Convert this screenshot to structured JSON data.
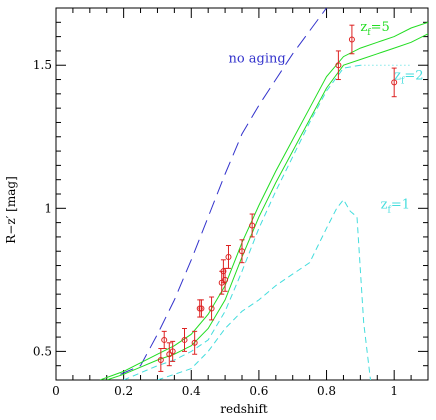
{
  "chart_data": {
    "type": "line",
    "xlabel": "redshift",
    "ylabel": "R−z′ [mag]",
    "xlim": [
      0,
      1.1
    ],
    "ylim": [
      0.4,
      1.7
    ],
    "x_ticks": [
      "0",
      "0.2",
      "0.4",
      "0.6",
      "0.8",
      "1"
    ],
    "y_ticks": [
      "0.5",
      "1",
      "1.5"
    ],
    "x_tick_values": [
      0,
      0.2,
      0.4,
      0.6,
      0.8,
      1.0
    ],
    "y_tick_values": [
      0.5,
      1.0,
      1.5
    ],
    "grid": false,
    "colors": {
      "no_aging": "#3333cc",
      "zf5": "#22dd22",
      "zf2": "#44dddd",
      "zf1": "#44dddd",
      "observed": "#dd2222",
      "frame": "#000000"
    },
    "series": [
      {
        "name": "no aging",
        "style": "long-dash",
        "color_key": "no_aging",
        "label_at": [
          0.51,
          1.51
        ],
        "x": [
          0.19,
          0.25,
          0.3,
          0.35,
          0.4,
          0.45,
          0.5,
          0.55,
          0.6,
          0.65,
          0.7,
          0.75,
          0.8,
          0.84
        ],
        "y": [
          0.42,
          0.45,
          0.56,
          0.68,
          0.82,
          0.97,
          1.12,
          1.26,
          1.36,
          1.45,
          1.54,
          1.62,
          1.7,
          1.75
        ]
      },
      {
        "name": "z_f=5 (upper)",
        "style": "solid",
        "color_key": "zf5",
        "x": [
          0.13,
          0.2,
          0.3,
          0.35,
          0.4,
          0.45,
          0.5,
          0.55,
          0.6,
          0.65,
          0.7,
          0.75,
          0.8,
          0.85,
          0.9,
          0.95,
          1.0,
          1.05,
          1.1
        ],
        "y": [
          0.4,
          0.43,
          0.49,
          0.52,
          0.56,
          0.63,
          0.73,
          0.88,
          1.01,
          1.13,
          1.24,
          1.35,
          1.46,
          1.53,
          1.56,
          1.58,
          1.6,
          1.63,
          1.65
        ]
      },
      {
        "name": "z_f=5 (lower)",
        "style": "solid",
        "color_key": "zf5",
        "x": [
          0.15,
          0.2,
          0.3,
          0.35,
          0.4,
          0.45,
          0.5,
          0.55,
          0.6,
          0.65,
          0.7,
          0.75,
          0.8,
          0.85,
          0.9,
          0.95,
          1.0,
          1.05,
          1.1
        ],
        "y": [
          0.4,
          0.42,
          0.47,
          0.49,
          0.52,
          0.58,
          0.68,
          0.83,
          0.97,
          1.09,
          1.2,
          1.31,
          1.42,
          1.5,
          1.52,
          1.54,
          1.56,
          1.58,
          1.61
        ]
      },
      {
        "name": "z_f=2",
        "style": "dashed",
        "color_key": "zf2",
        "label_at": [
          1.0,
          1.45
        ],
        "x": [
          0.2,
          0.3,
          0.35,
          0.4,
          0.45,
          0.5,
          0.55,
          0.6,
          0.65,
          0.7,
          0.75,
          0.8,
          0.85,
          0.9
        ],
        "y": [
          0.4,
          0.45,
          0.47,
          0.5,
          0.54,
          0.64,
          0.78,
          0.93,
          1.06,
          1.18,
          1.3,
          1.41,
          1.49,
          1.5
        ]
      },
      {
        "name": "z_f=2 tail",
        "style": "dotted",
        "color_key": "zf2",
        "x": [
          0.9,
          1.0,
          1.05
        ],
        "y": [
          1.5,
          1.5,
          1.5
        ]
      },
      {
        "name": "z_f=1",
        "style": "dashed",
        "color_key": "zf1",
        "label_at": [
          0.96,
          1.0
        ],
        "x": [
          0.3,
          0.35,
          0.4,
          0.45,
          0.5,
          0.55,
          0.6,
          0.65,
          0.7,
          0.75,
          0.8,
          0.83,
          0.85,
          0.87,
          0.89,
          0.91,
          0.93
        ],
        "y": [
          0.4,
          0.42,
          0.44,
          0.5,
          0.58,
          0.64,
          0.68,
          0.73,
          0.77,
          0.81,
          0.93,
          1.0,
          1.03,
          0.99,
          0.97,
          0.6,
          0.4
        ]
      }
    ],
    "labels": {
      "no_aging": "no aging",
      "zf5": "zf=5",
      "zf2": "zf=2",
      "zf1": "zf=1"
    },
    "observed": {
      "name": "data",
      "color_key": "observed",
      "x": [
        0.31,
        0.32,
        0.335,
        0.345,
        0.38,
        0.41,
        0.425,
        0.43,
        0.46,
        0.49,
        0.495,
        0.5,
        0.51,
        0.55,
        0.58,
        0.835,
        0.875,
        1.0
      ],
      "y": [
        0.47,
        0.54,
        0.49,
        0.5,
        0.54,
        0.53,
        0.65,
        0.65,
        0.65,
        0.74,
        0.78,
        0.75,
        0.83,
        0.85,
        0.94,
        1.5,
        1.59,
        1.44
      ],
      "yerr": [
        0.04,
        0.03,
        0.04,
        0.035,
        0.04,
        0.04,
        0.03,
        0.03,
        0.04,
        0.04,
        0.04,
        0.04,
        0.04,
        0.04,
        0.04,
        0.05,
        0.05,
        0.05
      ]
    }
  }
}
